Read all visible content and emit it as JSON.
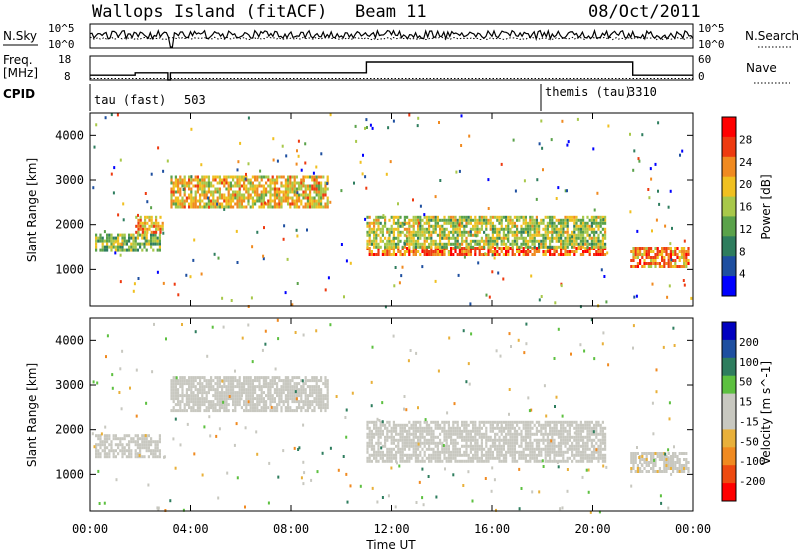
{
  "header": {
    "station": "Wallops Island (fitACF)",
    "beam": "Beam 11",
    "date": "08/Oct/2011"
  },
  "noise_panel": {
    "left_label": "N.Sky",
    "right_label": "N.Search",
    "left_ticks": [
      "10^5",
      "10^0"
    ],
    "right_ticks": [
      "10^5",
      "10^0"
    ]
  },
  "freq_panel": {
    "left_label_1": "Freq.",
    "left_label_2": "[MHz]",
    "right_label": "Nave",
    "left_ticks": [
      "18",
      "8"
    ],
    "right_ticks": [
      "60",
      "0"
    ]
  },
  "cpid_panel": {
    "label": "CPID",
    "programs": [
      {
        "name": "tau (fast)",
        "id": "503"
      },
      {
        "name": "themis (tau)",
        "id": "3310"
      }
    ]
  },
  "colors": {
    "scale": [
      "#0000ff",
      "#1e4fa0",
      "#2e7d5e",
      "#5aa24a",
      "#a8c84a",
      "#f0c020",
      "#f08a20",
      "#ee3a10",
      "#ff0000"
    ],
    "velocity_scale": [
      "#ff0000",
      "#ee4a10",
      "#f08a20",
      "#e8b03a",
      "#c8c8c0",
      "#c8c8c0",
      "#5dc040",
      "#2e7d5e",
      "#1e4fa0",
      "#0000c0"
    ]
  },
  "chart_data": [
    {
      "type": "heatmap",
      "title": "",
      "xlabel": "Time UT",
      "ylabel": "Slant Range [km]",
      "colorbar_label": "Power [dB]",
      "colorbar_ticks": [
        "28",
        "24",
        "20",
        "16",
        "12",
        "8",
        "4"
      ],
      "x_ticks": [
        "00:00",
        "04:00",
        "08:00",
        "12:00",
        "16:00",
        "20:00",
        "00:00"
      ],
      "y_ticks": [
        "1000",
        "2000",
        "3000",
        "4000"
      ],
      "xlim": [
        0,
        24
      ],
      "ylim": [
        180,
        4500
      ],
      "echo_regions": [
        {
          "t0": 0.2,
          "t1": 2.8,
          "r0": 1400,
          "r1": 1800,
          "value": 14
        },
        {
          "t0": 1.8,
          "t1": 2.9,
          "r0": 1800,
          "r1": 2200,
          "value": 22
        },
        {
          "t0": 3.2,
          "t1": 9.5,
          "r0": 2400,
          "r1": 3100,
          "value": 20
        },
        {
          "t0": 11.0,
          "t1": 20.5,
          "r0": 1300,
          "r1": 1500,
          "value": 26
        },
        {
          "t0": 11.0,
          "t1": 20.5,
          "r0": 1500,
          "r1": 2200,
          "value": 16
        },
        {
          "t0": 21.5,
          "t1": 23.8,
          "r0": 1050,
          "r1": 1500,
          "value": 24
        }
      ]
    },
    {
      "type": "heatmap",
      "title": "",
      "xlabel": "Time UT",
      "ylabel": "Slant Range [km]",
      "colorbar_label": "Velocity [m s^-1]",
      "colorbar_ticks": [
        "200",
        "100",
        "50",
        "15",
        "-15",
        "-50",
        "-100",
        "-200"
      ],
      "x_ticks": [
        "00:00",
        "04:00",
        "08:00",
        "12:00",
        "16:00",
        "20:00",
        "00:00"
      ],
      "y_ticks": [
        "1000",
        "2000",
        "3000",
        "4000"
      ],
      "xlim": [
        0,
        24
      ],
      "ylim": [
        180,
        4500
      ],
      "echo_regions": [
        {
          "t0": 0.2,
          "t1": 2.8,
          "r0": 1400,
          "r1": 1900,
          "value": 0
        },
        {
          "t0": 3.2,
          "t1": 9.5,
          "r0": 2400,
          "r1": 3200,
          "value": 0
        },
        {
          "t0": 11.0,
          "t1": 20.5,
          "r0": 1300,
          "r1": 2200,
          "value": 0
        },
        {
          "t0": 21.5,
          "t1": 23.8,
          "r0": 1050,
          "r1": 1500,
          "value": -30
        }
      ]
    }
  ]
}
